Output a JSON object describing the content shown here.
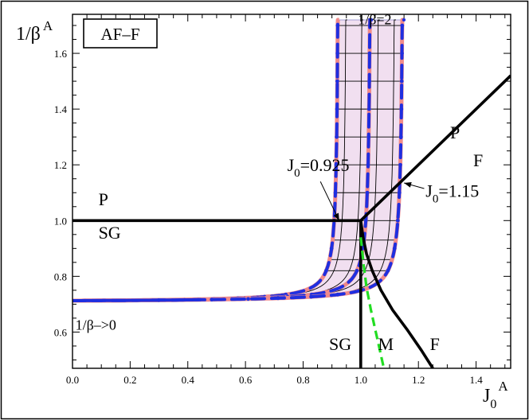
{
  "chart_data": {
    "type": "line",
    "title": "",
    "panel_label": "AF–F",
    "xlabel": {
      "main": "J",
      "sub": "0",
      "sup": "A"
    },
    "ylabel": {
      "main": "1/β",
      "sup": "A"
    },
    "xlim": [
      0.0,
      1.52
    ],
    "ylim": [
      0.47,
      1.74
    ],
    "grid": false,
    "legend": "none",
    "x_ticks": [
      "0.0",
      "0.2",
      "0.4",
      "0.6",
      "0.8",
      "1.0",
      "1.2",
      "1.4"
    ],
    "x_tick_values": [
      0.0,
      0.2,
      0.4,
      0.6,
      0.8,
      1.0,
      1.2,
      1.4
    ],
    "y_ticks": [
      "0.6",
      "0.8",
      "1.0",
      "1.2",
      "1.4",
      "1.6"
    ],
    "y_tick_values": [
      0.6,
      0.8,
      1.0,
      1.2,
      1.4,
      1.6
    ],
    "annotations": [
      {
        "text": "1/β=2",
        "x": 0.99,
        "y": 1.705
      },
      {
        "text": "P",
        "x": 0.09,
        "y": 1.055
      },
      {
        "text": "SG",
        "x": 0.09,
        "y": 0.935
      },
      {
        "text": "1/β–>0",
        "x": 0.01,
        "y": 0.608
      },
      {
        "text": "P",
        "x": 1.31,
        "y": 1.295
      },
      {
        "text": "F",
        "x": 1.39,
        "y": 1.195
      },
      {
        "text": "SG",
        "x": 0.89,
        "y": 0.535
      },
      {
        "text": "M",
        "x": 1.06,
        "y": 0.535
      },
      {
        "text": "F",
        "x": 1.24,
        "y": 0.535
      }
    ],
    "callouts": [
      {
        "text": "J",
        "sub": "0",
        "rest": "=0.925",
        "tx": 0.745,
        "ty": 1.178,
        "ax0": 0.86,
        "ay0": 1.14,
        "ax1": 0.925,
        "ay1": 1.0
      },
      {
        "text": "J",
        "sub": "0",
        "rest": "=1.15",
        "tx": 1.225,
        "ty": 1.085,
        "ax0": 1.22,
        "ay0": 1.115,
        "ax1": 1.15,
        "ay1": 1.135
      }
    ],
    "phase_boundaries": [
      {
        "name": "P-SG",
        "color": "#000000",
        "x": [
          0.0,
          1.0
        ],
        "y": [
          1.0,
          1.0
        ]
      },
      {
        "name": "P-F",
        "color": "#000000",
        "x": [
          1.0,
          1.52
        ],
        "y": [
          1.0,
          1.52
        ]
      },
      {
        "name": "SG-M",
        "color": "#000000",
        "x": [
          1.0,
          1.0
        ],
        "y": [
          1.0,
          0.47
        ]
      },
      {
        "name": "M-F",
        "color": "#000000",
        "x": [
          1.0,
          1.008,
          1.02,
          1.04,
          1.07,
          1.11,
          1.16,
          1.21,
          1.25
        ],
        "y": [
          1.0,
          0.94,
          0.88,
          0.82,
          0.75,
          0.68,
          0.61,
          0.535,
          0.47
        ]
      },
      {
        "name": "dashed",
        "color": "#22dd22",
        "x": [
          1.0,
          1.01,
          1.02,
          1.035,
          1.05,
          1.065,
          1.08
        ],
        "y": [
          0.94,
          0.84,
          0.76,
          0.68,
          0.61,
          0.54,
          0.47
        ]
      }
    ],
    "coexistence_region": {
      "fill": "#f1dff0",
      "J0_range": [
        0.925,
        1.15
      ],
      "asymptote": 0.707,
      "top": 1.72,
      "low_x": 0.0
    },
    "colors": {
      "blue": "#1f2fe0",
      "salmon": "#f08a8a",
      "black": "#000000",
      "green": "#22dd22"
    }
  }
}
